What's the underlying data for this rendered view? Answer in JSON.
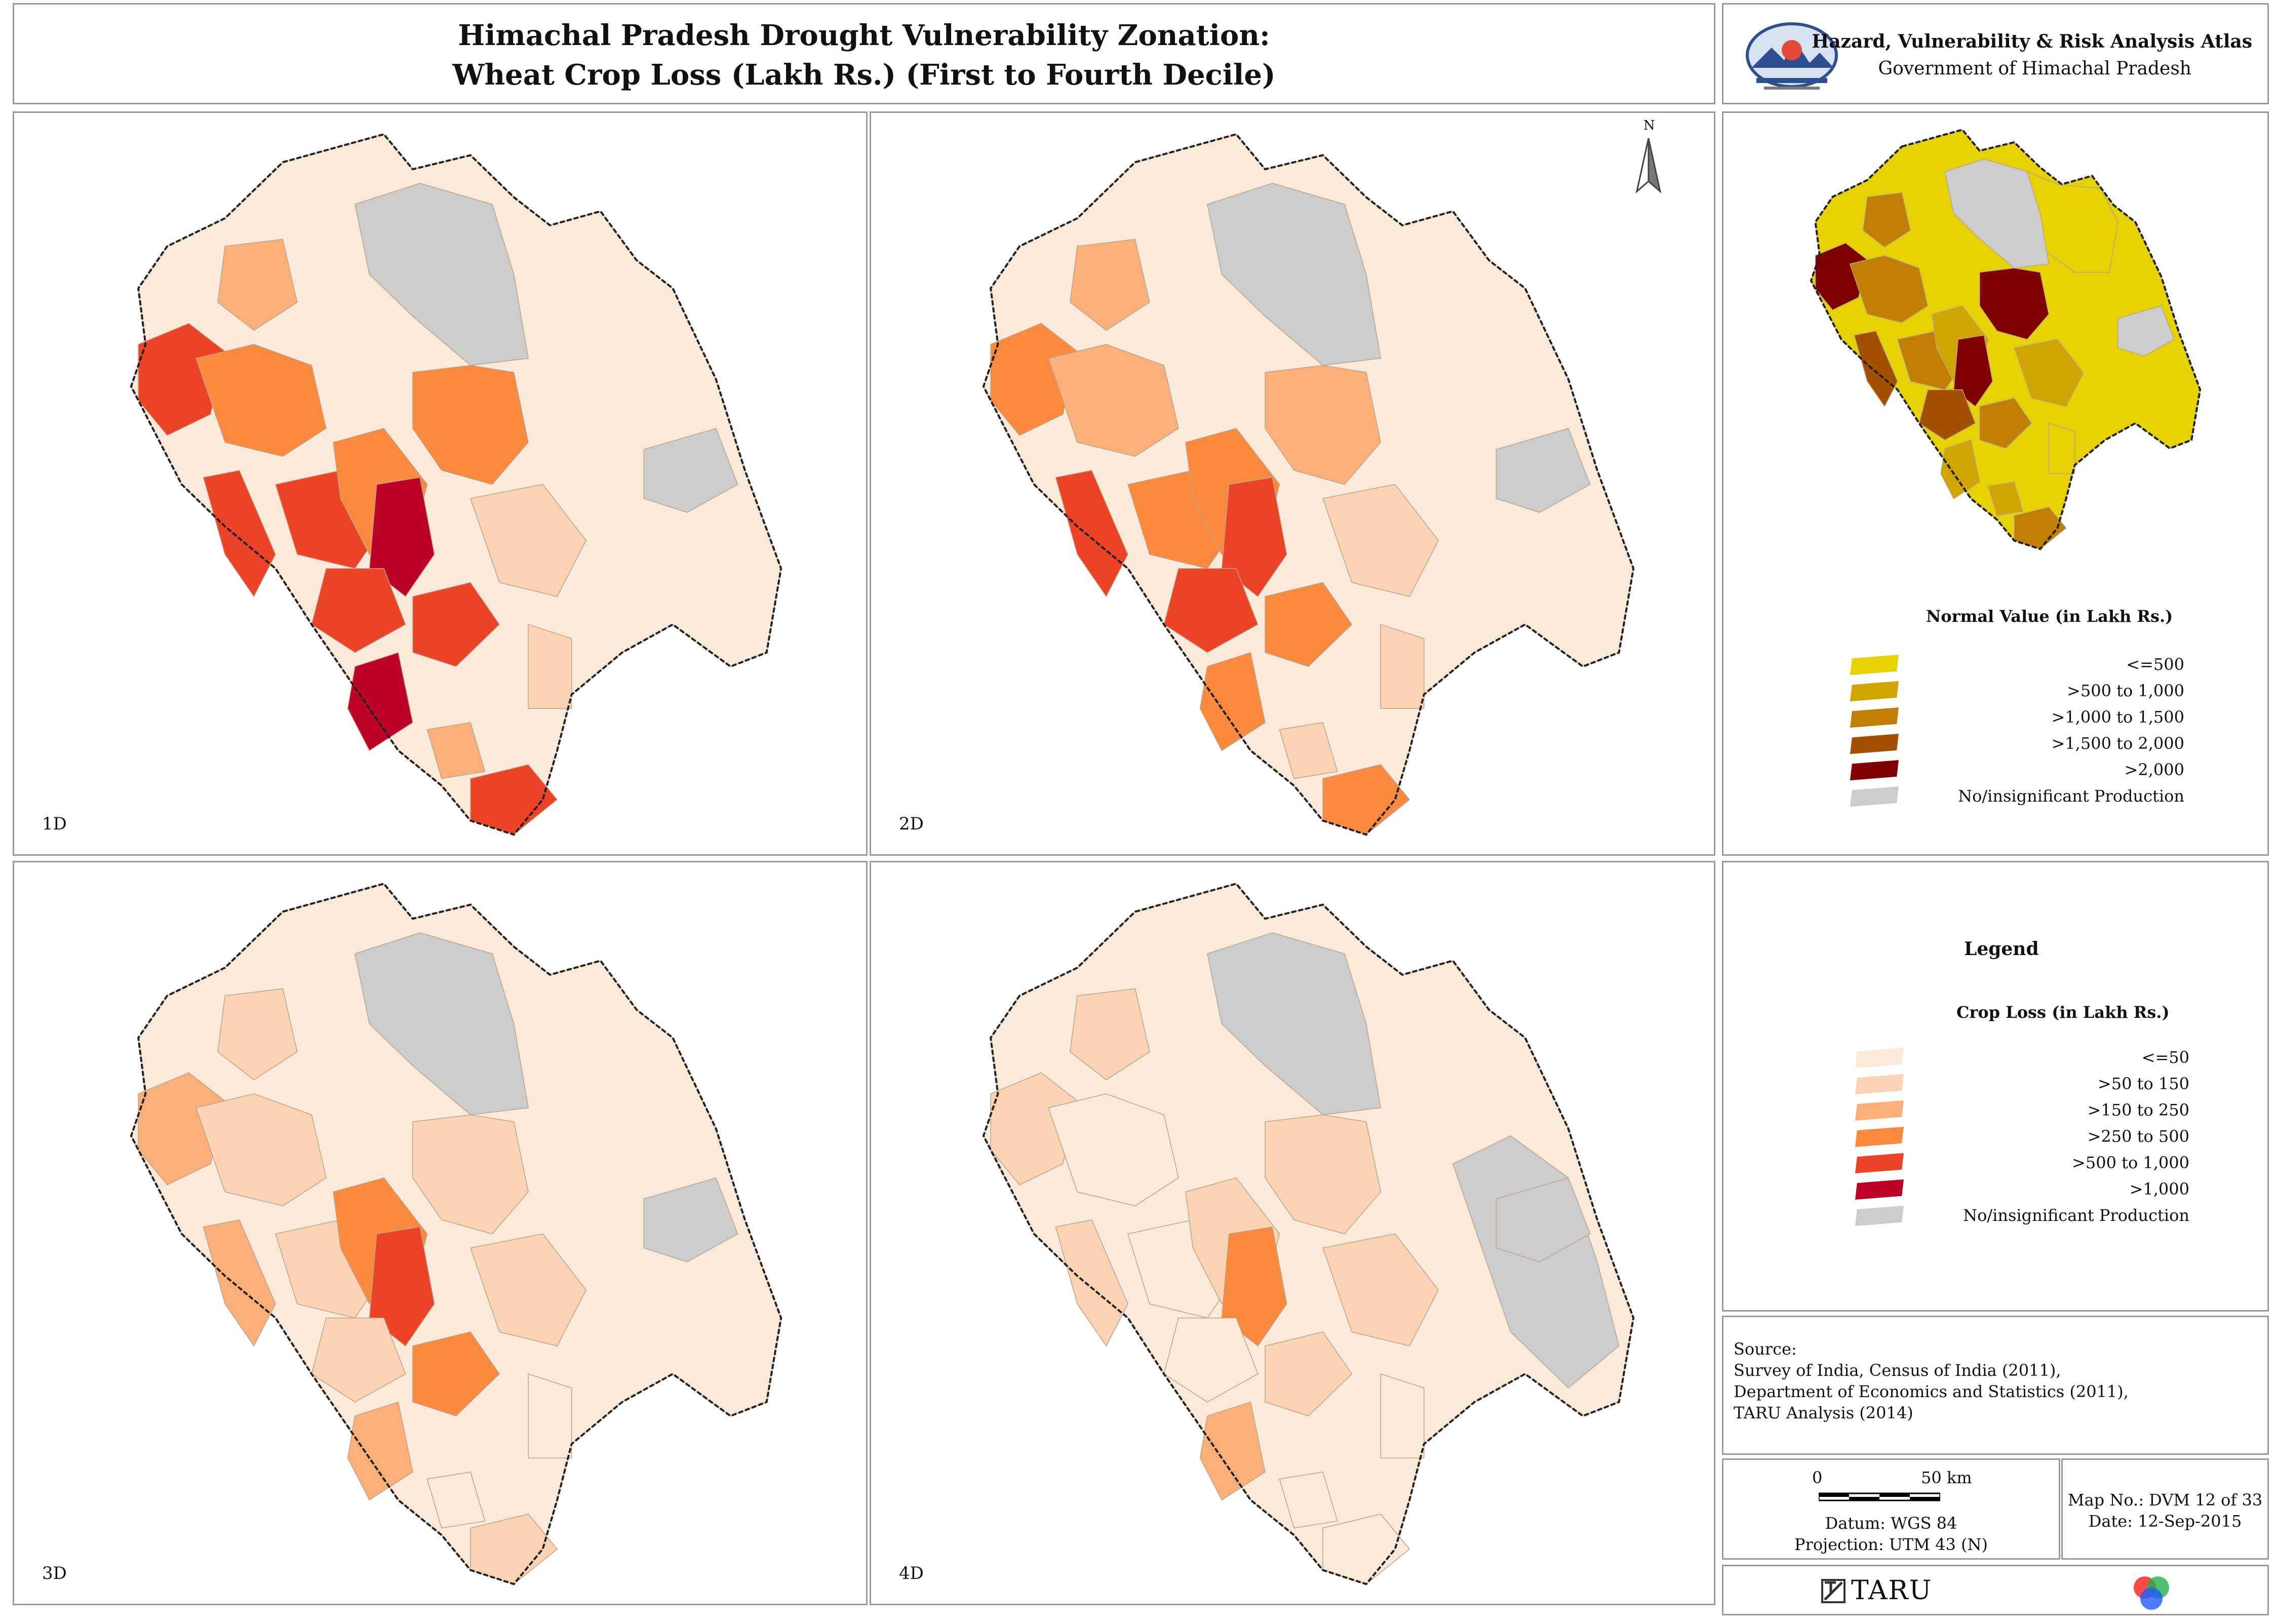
{
  "title": {
    "line1": "Himachal Pradesh Drought Vulnerability Zonation:",
    "line2": "Wheat Crop Loss (Lakh Rs.) (First to Fourth Decile)"
  },
  "header": {
    "atlas_title": "Hazard, Vulnerability & Risk Analysis Atlas",
    "government": "Government of Himachal Pradesh",
    "logo_icon": "himachal-seal-icon"
  },
  "north_arrow": {
    "label": "N"
  },
  "maps": [
    {
      "label": "1D"
    },
    {
      "label": "2D"
    },
    {
      "label": "3D"
    },
    {
      "label": "4D"
    }
  ],
  "normal_legend": {
    "title": "Normal Value (in Lakh Rs.)",
    "items": [
      {
        "label": "<=500",
        "color": "#e6d200"
      },
      {
        "label": ">500 to 1,000",
        "color": "#d1a500"
      },
      {
        "label": ">1,000 to 1,500",
        "color": "#c07f00"
      },
      {
        "label": ">1,500 to 2,000",
        "color": "#a34f00"
      },
      {
        "label": ">2,000",
        "color": "#7e0000"
      },
      {
        "label": "No/insignificant Production",
        "color": "#cccccc"
      }
    ]
  },
  "crop_legend": {
    "heading": "Legend",
    "title": "Crop Loss (in Lakh Rs.)",
    "items": [
      {
        "label": "<=50",
        "color": "#fbe9d9"
      },
      {
        "label": ">50 to 150",
        "color": "#fcd4b4"
      },
      {
        "label": ">150 to 250",
        "color": "#fbb07a"
      },
      {
        "label": ">250 to 500",
        "color": "#fb8a3e"
      },
      {
        "label": ">500 to 1,000",
        "color": "#ec4225"
      },
      {
        "label": ">1,000",
        "color": "#bd0026"
      },
      {
        "label": "No/insignificant Production",
        "color": "#cccccc"
      }
    ]
  },
  "source": {
    "heading": "Source:",
    "lines": [
      "Survey of India, Census of India (2011),",
      "Department of Economics and Statistics (2011),",
      "TARU Analysis (2014)"
    ]
  },
  "scale": {
    "start": "0",
    "end": "50 km"
  },
  "datum": "Datum: WGS 84",
  "projection": "Projection: UTM 43 (N)",
  "map_no": "Map No.: DVM 12 of 33",
  "date": "Date: 12-Sep-2015",
  "footer": {
    "brand": "TARU",
    "brand_icon": "taru-logo-icon",
    "rgb_icon": "rgb-circles-icon"
  }
}
